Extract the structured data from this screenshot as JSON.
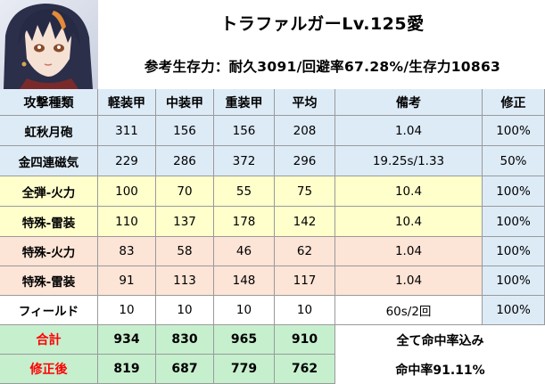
{
  "header": {
    "title": "トラファルガーLv.125愛",
    "subtitle": "参考生存力：耐久3091/回避率67.28%/生存力10863"
  },
  "table": {
    "columns": [
      "攻撃種類",
      "軽装甲",
      "中装甲",
      "重装甲",
      "平均",
      "備考",
      "修正"
    ],
    "rows": [
      {
        "label": "虹秋月砲",
        "light": "311",
        "medium": "156",
        "heavy": "156",
        "avg": "208",
        "note": "1.04",
        "mod": "100%",
        "color": "#ddebf7"
      },
      {
        "label": "金四連磁気",
        "light": "229",
        "medium": "286",
        "heavy": "372",
        "avg": "296",
        "note": "19.25s/1.33",
        "mod": "50%",
        "color": "#ddebf7"
      },
      {
        "label": "全弾-火力",
        "light": "100",
        "medium": "70",
        "heavy": "55",
        "avg": "75",
        "note": "10.4",
        "mod": "100%",
        "color": "#ffffcc"
      },
      {
        "label": "特殊-雷装",
        "light": "110",
        "medium": "137",
        "heavy": "178",
        "avg": "142",
        "note": "10.4",
        "mod": "100%",
        "color": "#ffffcc"
      },
      {
        "label": "特殊-火力",
        "light": "83",
        "medium": "58",
        "heavy": "46",
        "avg": "62",
        "note": "1.04",
        "mod": "100%",
        "color": "#fce4d6"
      },
      {
        "label": "特殊-雷装",
        "light": "91",
        "medium": "113",
        "heavy": "148",
        "avg": "117",
        "note": "1.04",
        "mod": "100%",
        "color": "#fce4d6"
      },
      {
        "label": "フィールド",
        "light": "10",
        "medium": "10",
        "heavy": "10",
        "avg": "10",
        "note": "60s/2回",
        "mod": "100%",
        "color": "#ffffff"
      }
    ],
    "totals": [
      {
        "label": "合計",
        "light": "934",
        "medium": "830",
        "heavy": "965",
        "avg": "910",
        "note": "全て命中率込み",
        "label_color": "#ff0000"
      },
      {
        "label": "修正後",
        "light": "819",
        "medium": "687",
        "heavy": "779",
        "avg": "762",
        "note": "命中率91.11%",
        "label_color": "#ff0000"
      }
    ],
    "header_color": "#ddebf7",
    "total_fill": "#c6efce"
  }
}
